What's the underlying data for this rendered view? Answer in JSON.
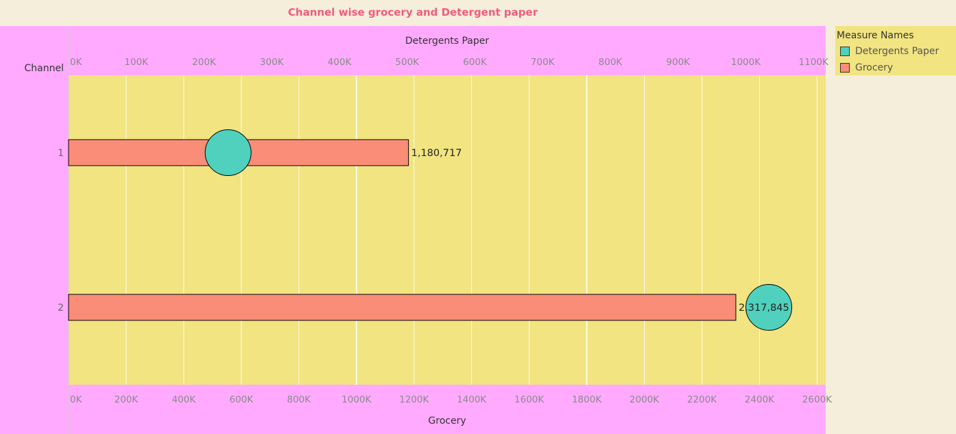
{
  "chart_data": {
    "type": "bar",
    "title": "Channel wise grocery and Detergent paper",
    "row_header": "Channel",
    "categories": [
      "1",
      "2"
    ],
    "series": [
      {
        "name": "Grocery",
        "mark": "bar",
        "values": [
          1180717,
          2317845
        ],
        "data_labels": [
          "1,180,717",
          "2,317,845"
        ],
        "axis": "bottom",
        "color": "#f98d78"
      },
      {
        "name": "Detergents Paper",
        "mark": "circle",
        "values": [
          235600,
          1034000
        ],
        "axis": "top",
        "color": "#4fd1bd"
      }
    ],
    "x_axis_bottom": {
      "label": "Grocery",
      "range": [
        0,
        2630000
      ],
      "ticks": [
        0,
        200000,
        400000,
        600000,
        800000,
        1000000,
        1200000,
        1400000,
        1600000,
        1800000,
        2000000,
        2200000,
        2400000,
        2600000
      ],
      "tick_labels": [
        "0K",
        "200K",
        "400K",
        "600K",
        "800K",
        "1000K",
        "1200K",
        "1400K",
        "1600K",
        "1800K",
        "2000K",
        "2200K",
        "2400K",
        "2600K"
      ]
    },
    "x_axis_top": {
      "label": "Detergents Paper",
      "range": [
        0,
        1118000
      ],
      "ticks": [
        0,
        100000,
        200000,
        300000,
        400000,
        500000,
        600000,
        700000,
        800000,
        900000,
        1000000,
        1100000
      ],
      "tick_labels": [
        "0K",
        "100K",
        "200K",
        "300K",
        "400K",
        "500K",
        "600K",
        "700K",
        "800K",
        "900K",
        "1000K",
        "1100K"
      ]
    },
    "grid": true,
    "legend": {
      "title": "Measure Names",
      "position": "top-right",
      "items": [
        {
          "label": "Detergents Paper",
          "color": "#4fd1bd"
        },
        {
          "label": "Grocery",
          "color": "#f98d78"
        }
      ]
    }
  },
  "colors": {
    "title": "#f15c80",
    "header_band": "#ffaaff",
    "plot_background": "#f1e481",
    "page_background": "#f5eedb"
  }
}
